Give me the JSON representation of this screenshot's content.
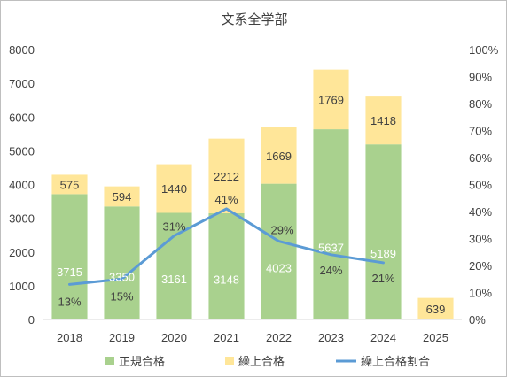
{
  "chart_data": {
    "type": "bar",
    "title": "文系全学部",
    "categories": [
      "2018",
      "2019",
      "2020",
      "2021",
      "2022",
      "2023",
      "2024",
      "2025"
    ],
    "series": [
      {
        "name": "正規合格",
        "kind": "bar",
        "stack": "total",
        "color": "#a9d18e",
        "values": [
          3715,
          3350,
          3161,
          3148,
          4023,
          5637,
          5189,
          null
        ],
        "labels": [
          "3715",
          "3350",
          "3161",
          "3148",
          "4023",
          "5637",
          "5189",
          ""
        ]
      },
      {
        "name": "繰上合格",
        "kind": "bar",
        "stack": "total",
        "color": "#ffe699",
        "values": [
          575,
          594,
          1440,
          2212,
          1669,
          1769,
          1418,
          639
        ],
        "labels": [
          "575",
          "594",
          "1440",
          "2212",
          "1669",
          "1769",
          "1418",
          "639"
        ]
      },
      {
        "name": "繰上合格割合",
        "kind": "line",
        "axis": "right",
        "color": "#5b9bd5",
        "values": [
          13,
          15,
          31,
          41,
          29,
          24,
          21,
          null
        ],
        "labels": [
          "13%",
          "15%",
          "31%",
          "41%",
          "29%",
          "24%",
          "21%",
          ""
        ]
      }
    ],
    "y_left": {
      "ylim": [
        0,
        8000
      ],
      "ticks": [
        "0",
        "1000",
        "2000",
        "3000",
        "4000",
        "5000",
        "6000",
        "7000",
        "8000"
      ]
    },
    "y_right": {
      "ylim": [
        0,
        100
      ],
      "ticks": [
        "0%",
        "10%",
        "20%",
        "30%",
        "40%",
        "50%",
        "60%",
        "70%",
        "80%",
        "90%",
        "100%"
      ]
    },
    "grid": false,
    "legend": "bottom"
  }
}
